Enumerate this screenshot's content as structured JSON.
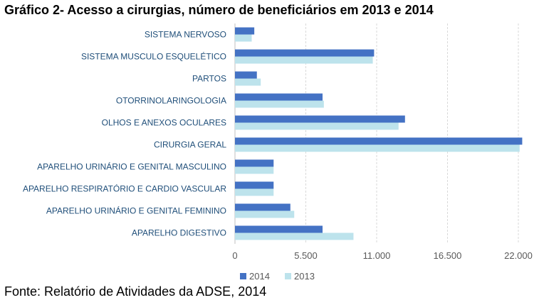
{
  "title": "Gráfico 2- Acesso a cirurgias, número de beneficiários em 2013 e 2014",
  "source": "Fonte: Relatório de Atividades da ADSE, 2014",
  "chart_data": {
    "type": "bar",
    "orientation": "horizontal",
    "categories": [
      "SISTEMA NERVOSO",
      "SISTEMA MUSCULO ESQUELÉTICO",
      "PARTOS",
      "OTORRINOLARINGOLOGIA",
      "OLHOS E ANEXOS OCULARES",
      "CIRURGIA GERAL",
      "APARELHO URINÁRIO E GENITAL MASCULINO",
      "APARELHO RESPIRATÓRIO E CARDIO VASCULAR",
      "APARELHO URINÁRIO  E GENITAL FEMININO",
      "APARELHO DIGESTIVO"
    ],
    "series": [
      {
        "name": "2014",
        "color": "#4472C4",
        "values": [
          1500,
          10800,
          1700,
          6800,
          13200,
          22300,
          3000,
          3000,
          4300,
          6800
        ]
      },
      {
        "name": "2013",
        "color": "#BDE3EC",
        "values": [
          1300,
          10700,
          2000,
          6900,
          12700,
          22100,
          3000,
          3000,
          4600,
          9200
        ]
      }
    ],
    "xlim": [
      0,
      22000
    ],
    "ticks": [
      0,
      5500,
      11000,
      16500,
      22000
    ],
    "tick_labels": [
      "0",
      "5.500",
      "11.000",
      "16.500",
      "22.000"
    ],
    "grid": true,
    "legend": "bottom"
  }
}
